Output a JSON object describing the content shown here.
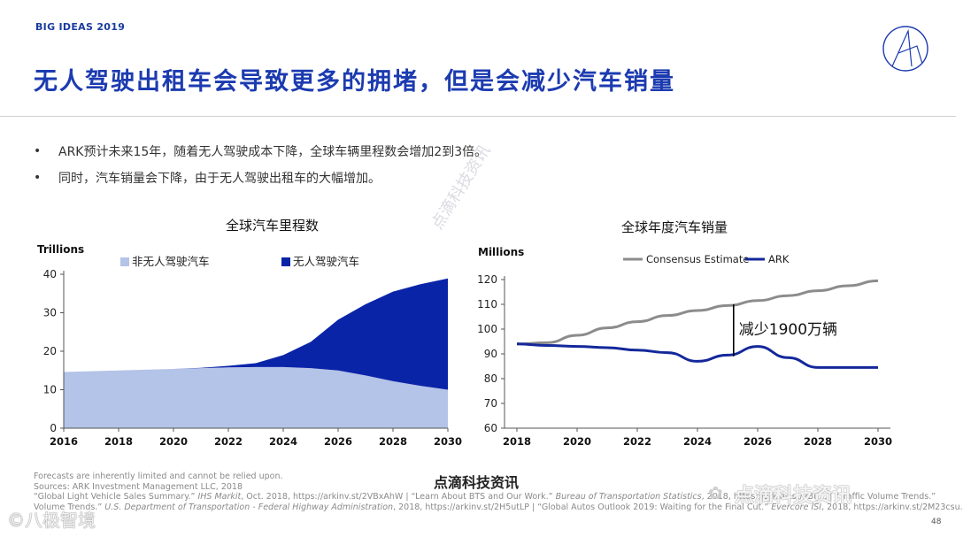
{
  "header": {
    "brand": "BIG IDEAS 2019",
    "title": "无人驾驶出租车会导致更多的拥堵，但是会减少汽车销量"
  },
  "bullets": [
    "ARK预计未来15年，随着无人驾驶成本下降，全球车辆里程数会增加2到3倍。",
    "同时，汽车销量会下降，由于无人驾驶出租车的大幅增加。"
  ],
  "bullet_marker": "•",
  "colors": {
    "title": "#1c3bb0",
    "non_autonomous": "#b4c3e8",
    "autonomous": "#0a24a8",
    "consensus": "#8c8c8c",
    "ark": "#14289a"
  },
  "chart_data": [
    {
      "type": "area",
      "title": "全球汽车里程数",
      "ylabel": "Trillions",
      "ylim": [
        0,
        40
      ],
      "yticks": [
        0,
        10,
        20,
        30,
        40
      ],
      "xticks": [
        2016,
        2018,
        2020,
        2022,
        2024,
        2026,
        2028,
        2030
      ],
      "xlim": [
        2016,
        2030
      ],
      "stacked": true,
      "legend_position": "top",
      "series": [
        {
          "name": "非无人驾驶汽车",
          "x": [
            2016,
            2017,
            2018,
            2019,
            2020,
            2021,
            2022,
            2023,
            2024,
            2025,
            2026,
            2027,
            2028,
            2029,
            2030
          ],
          "values": [
            14.6,
            14.8,
            15.0,
            15.2,
            15.4,
            15.6,
            15.8,
            15.9,
            15.9,
            15.6,
            15.0,
            13.7,
            12.2,
            11.0,
            10.0
          ]
        },
        {
          "name": "无人驾驶汽车",
          "x": [
            2016,
            2017,
            2018,
            2019,
            2020,
            2021,
            2022,
            2023,
            2024,
            2025,
            2026,
            2027,
            2028,
            2029,
            2030
          ],
          "values": [
            0,
            0,
            0,
            0,
            0,
            0.1,
            0.4,
            1.0,
            3.1,
            6.8,
            13.2,
            18.5,
            23.3,
            26.4,
            28.9
          ]
        }
      ]
    },
    {
      "type": "line",
      "title": "全球年度汽车销量",
      "ylabel": "Millions",
      "ylim": [
        60,
        120
      ],
      "yticks": [
        60,
        70,
        80,
        90,
        100,
        110,
        120
      ],
      "xticks": [
        2018,
        2020,
        2022,
        2024,
        2026,
        2028,
        2030
      ],
      "xlim": [
        2018,
        2030
      ],
      "legend_position": "top",
      "series": [
        {
          "name": "Consensus Estimate",
          "x": [
            2018,
            2019,
            2020,
            2021,
            2022,
            2023,
            2024,
            2025,
            2026,
            2027,
            2028,
            2029,
            2030
          ],
          "values": [
            94,
            94.5,
            97.5,
            100.5,
            103,
            105.5,
            107.5,
            109.5,
            111.5,
            113.5,
            115.5,
            117.5,
            119.5
          ]
        },
        {
          "name": "ARK",
          "x": [
            2018,
            2019,
            2020,
            2021,
            2022,
            2023,
            2024,
            2025,
            2026,
            2027,
            2028,
            2029,
            2030
          ],
          "values": [
            94,
            93.4,
            93,
            92.5,
            91.5,
            90.5,
            87,
            89.5,
            93,
            88.5,
            84.5,
            84.5,
            84.5
          ]
        }
      ],
      "annotation": {
        "text": "减少1900万辆",
        "x": 2025.2
      }
    }
  ],
  "footnotes": {
    "line1": "Forecasts are inherently limited and cannot be relied upon.",
    "line2": "Sources: ARK Investment Management LLC, 2018",
    "line3_a": "“Global Light Vehicle Sales Summary.”",
    "line3_b": "IHS Markit",
    "line3_c": ", Oct. 2018, https://arkinv.st/2VBxAhW |   “Learn About BTS and Our Work.”",
    "line3_d": "Bureau of Transportation Statistics",
    "line3_e": ", 2018, https://arkinv.st/2Bu... | “Traffic Volume Trends.”",
    "line4_a": "Volume Trends.”",
    "line4_b": "U.S. Department of Transportation - Federal Highway Administration",
    "line4_c": ", 2018, https://arkinv.st/2H5utLP |   “Global Autos Outlook 2019: Waiting for the Final Cut.”",
    "line4_d": "Evercore ISI",
    "line4_e": ", 2018, https://arkinv.st/2M23csu."
  },
  "watermarks": {
    "center": "点滴科技资讯",
    "wechat": "点滴科技资讯",
    "brand_mark": "©八极智境",
    "diagonal": "点滴科技资讯"
  },
  "page_number": "48",
  "icons": {
    "logo": "ark-logo-icon",
    "wechat": "wechat-icon"
  }
}
